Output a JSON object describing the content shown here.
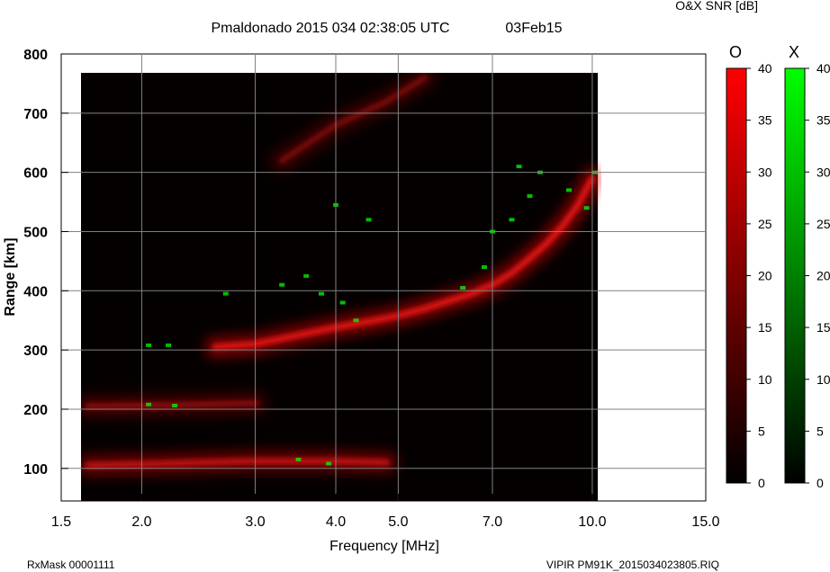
{
  "header": {
    "title": "Pmaldonado 2015 034 02:38:05 UTC",
    "date": "03Feb15",
    "snr_label": "O&X SNR [dB]"
  },
  "footer": {
    "left": "RxMask 00001111",
    "right": "VIPIR  PM91K_2015034023805.RIQ"
  },
  "chart_data": {
    "type": "heatmap",
    "title": "Pmaldonado 2015 034 02:38:05 UTC",
    "xlabel": "Frequency [MHz]",
    "ylabel": "Range [km]",
    "x_scale": "log",
    "xlim": [
      1.5,
      15.0
    ],
    "ylim": [
      45,
      800
    ],
    "x_ticks": [
      1.5,
      2.0,
      3.0,
      4.0,
      5.0,
      7.0,
      10.0,
      15.0
    ],
    "x_tick_labels": [
      "1.5",
      "2.0",
      "3.0",
      "4.0",
      "5.0",
      "7.0",
      "10.0",
      "15.0"
    ],
    "y_ticks": [
      100,
      200,
      300,
      400,
      500,
      600,
      700,
      800
    ],
    "y_tick_labels": [
      "100",
      "200",
      "300",
      "400",
      "500",
      "600",
      "700",
      "800"
    ],
    "grid": true,
    "data_extent": {
      "freq_mhz": [
        1.6,
        10.2
      ],
      "range_km": [
        45,
        770
      ]
    },
    "o_color": "#ff0000",
    "x_color": "#00ff00",
    "o_traces": [
      {
        "freq_mhz": [
          1.65,
          2.0,
          2.5,
          3.0,
          4.0,
          4.8
        ],
        "range_km": [
          105,
          107,
          110,
          112,
          112,
          110
        ],
        "snr_db": 28
      },
      {
        "freq_mhz": [
          1.65,
          2.0,
          2.5,
          3.0
        ],
        "range_km": [
          205,
          206,
          208,
          210
        ],
        "snr_db": 18
      },
      {
        "freq_mhz": [
          2.6,
          3.0,
          3.5,
          4.0,
          4.5,
          5.0,
          5.5,
          6.0,
          6.5,
          7.0,
          7.5,
          8.0,
          8.5,
          9.0,
          9.5,
          10.0
        ],
        "range_km": [
          305,
          310,
          325,
          338,
          348,
          358,
          370,
          383,
          395,
          410,
          430,
          455,
          480,
          510,
          545,
          590
        ],
        "snr_db": 35
      },
      {
        "freq_mhz": [
          3.3,
          4.0,
          4.8,
          5.5
        ],
        "range_km": [
          620,
          680,
          720,
          760
        ],
        "snr_db": 15
      }
    ],
    "x_points": [
      {
        "freq_mhz": 2.05,
        "range_km": 308
      },
      {
        "freq_mhz": 2.2,
        "range_km": 308
      },
      {
        "freq_mhz": 2.05,
        "range_km": 208
      },
      {
        "freq_mhz": 2.25,
        "range_km": 206
      },
      {
        "freq_mhz": 2.7,
        "range_km": 395
      },
      {
        "freq_mhz": 3.3,
        "range_km": 410
      },
      {
        "freq_mhz": 3.6,
        "range_km": 425
      },
      {
        "freq_mhz": 3.8,
        "range_km": 395
      },
      {
        "freq_mhz": 4.1,
        "range_km": 380
      },
      {
        "freq_mhz": 4.3,
        "range_km": 350
      },
      {
        "freq_mhz": 4.0,
        "range_km": 545
      },
      {
        "freq_mhz": 4.5,
        "range_km": 520
      },
      {
        "freq_mhz": 6.3,
        "range_km": 405
      },
      {
        "freq_mhz": 6.8,
        "range_km": 440
      },
      {
        "freq_mhz": 7.0,
        "range_km": 500
      },
      {
        "freq_mhz": 7.5,
        "range_km": 520
      },
      {
        "freq_mhz": 7.7,
        "range_km": 610
      },
      {
        "freq_mhz": 8.0,
        "range_km": 560
      },
      {
        "freq_mhz": 8.3,
        "range_km": 600
      },
      {
        "freq_mhz": 9.2,
        "range_km": 570
      },
      {
        "freq_mhz": 9.8,
        "range_km": 540
      },
      {
        "freq_mhz": 10.1,
        "range_km": 600
      },
      {
        "freq_mhz": 3.5,
        "range_km": 115
      },
      {
        "freq_mhz": 3.9,
        "range_km": 108
      }
    ],
    "colorbars": [
      {
        "label": "O",
        "range": [
          0,
          40
        ],
        "ticks": [
          0,
          5,
          10,
          15,
          20,
          25,
          30,
          35,
          40
        ],
        "tick_labels": [
          "0",
          "5",
          "10",
          "15",
          "20",
          "25",
          "30",
          "35",
          "40"
        ],
        "color": "#ff0000"
      },
      {
        "label": "X",
        "range": [
          0,
          40
        ],
        "ticks": [
          0,
          5,
          10,
          15,
          20,
          25,
          30,
          35,
          40
        ],
        "tick_labels": [
          "0",
          "5",
          "10",
          "15",
          "20",
          "25",
          "30",
          "35",
          "40"
        ],
        "color": "#00ff00"
      }
    ]
  }
}
